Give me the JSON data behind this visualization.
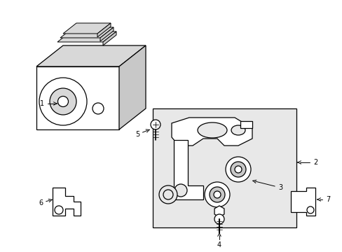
{
  "bg_color": "#ffffff",
  "line_color": "#000000",
  "lw": 0.9,
  "figsize": [
    4.89,
    3.6
  ],
  "dpi": 100,
  "bracket_fill": "#e8e8e8",
  "white": "#ffffff",
  "gray1": "#d8d8d8",
  "gray2": "#c8c8c8"
}
